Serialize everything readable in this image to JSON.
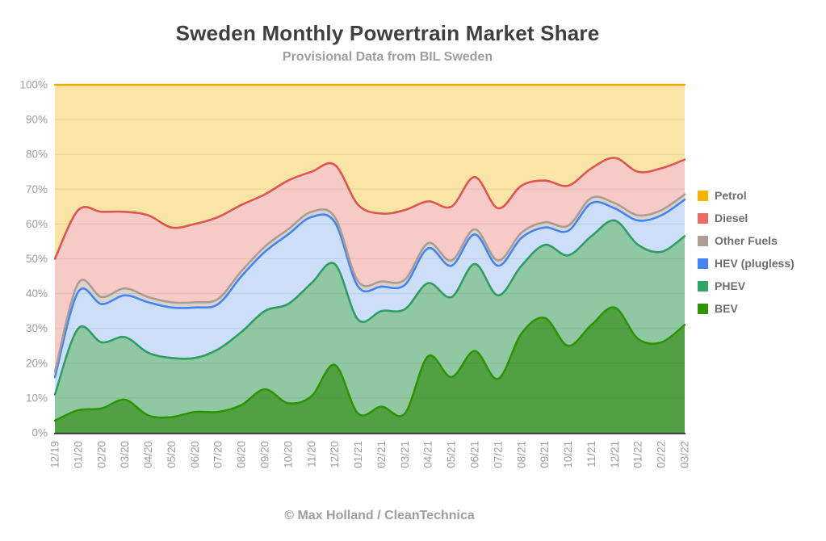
{
  "title": "Sweden Monthly Powertrain Market Share",
  "subtitle": "Provisional Data from BIL Sweden",
  "footer_credit": "© Max Holland / CleanTechnica",
  "colors": {
    "title_text": "#3F3F3F",
    "subtitle_text": "#9E9E9E",
    "axis_text": "#9E9E9E",
    "legend_text": "#6E6E6E",
    "footer_text": "#9E9E9E",
    "axis_line": "#333333",
    "gridline_overlay": "rgba(60,60,60,0.10)"
  },
  "legend": {
    "position": "right",
    "items": [
      "Petrol",
      "Diesel",
      "Other Fuels",
      "HEV (plugless)",
      "PHEV",
      "BEV"
    ]
  },
  "chart_data": {
    "type": "area",
    "stacked": true,
    "smoothing": "spline",
    "grid": true,
    "x_label_rotation": -90,
    "ylim": [
      0,
      100
    ],
    "y_tick_step": 10,
    "y_tick_suffix": "%",
    "categories": [
      "12/19",
      "01/20",
      "02/20",
      "03/20",
      "04/20",
      "05/20",
      "06/20",
      "07/20",
      "08/20",
      "09/20",
      "10/20",
      "11/20",
      "12/20",
      "01/21",
      "02/21",
      "03/21",
      "04/21",
      "05/21",
      "06/21",
      "07/21",
      "08/21",
      "09/21",
      "10/21",
      "11/21",
      "12/21",
      "01/22",
      "02/22",
      "03/22"
    ],
    "series": [
      {
        "name": "BEV",
        "line": "#2E9400",
        "fill": "#51A144",
        "swatch": "#2E9400",
        "values": [
          3.5,
          6.5,
          7,
          9.5,
          5,
          4.5,
          6,
          6,
          8,
          12.5,
          8.5,
          10.5,
          19.5,
          5.5,
          7.5,
          5.5,
          22,
          16,
          23.5,
          15.5,
          28.5,
          33,
          25,
          31,
          36,
          27,
          26,
          31
        ]
      },
      {
        "name": "PHEV",
        "line": "#2F9E64",
        "fill": "#8FC8A3",
        "swatch": "#34A367",
        "values": [
          7.5,
          23.5,
          19,
          18,
          18,
          17,
          15.5,
          18,
          21,
          22.5,
          28.5,
          32.5,
          29,
          27,
          27.5,
          30,
          21,
          23,
          25,
          24,
          19.5,
          21,
          26,
          25.5,
          25,
          27,
          26,
          25.5
        ]
      },
      {
        "name": "HEV (plugless)",
        "line": "#4285F4",
        "fill": "#CDDFF8",
        "swatch": "#4285F4",
        "values": [
          5,
          10.5,
          11,
          12,
          14.5,
          14.5,
          14.5,
          13,
          16,
          17,
          20,
          19,
          12,
          9.5,
          7,
          7,
          10,
          9,
          8.5,
          8.5,
          8,
          5,
          7,
          9.5,
          3.5,
          7,
          10.5,
          10.5
        ]
      },
      {
        "name": "Other Fuels",
        "line": "#AB9C94",
        "fill": "#DCD3CD",
        "swatch": "#AB9C94",
        "values": [
          1.5,
          2.5,
          2,
          2,
          1.5,
          1.5,
          1.5,
          1.5,
          1.5,
          1.5,
          1.5,
          1.5,
          1.5,
          1.5,
          1.5,
          1.5,
          1.5,
          1.5,
          1.5,
          1.5,
          1.5,
          1.5,
          1.5,
          1.5,
          1.5,
          1.5,
          1.5,
          1.5
        ]
      },
      {
        "name": "Diesel",
        "line": "#E0564E",
        "fill": "#F6CBC7",
        "swatch": "#E96B63",
        "values": [
          32.5,
          21,
          24.5,
          22,
          23.5,
          21.5,
          22.5,
          23.5,
          19,
          15,
          14,
          11.5,
          15,
          22,
          19.5,
          20,
          12,
          15.5,
          15,
          15,
          13.5,
          12,
          11.5,
          8.5,
          13,
          12.5,
          12,
          10
        ]
      },
      {
        "name": "Petrol",
        "line": "#F4B400",
        "fill": "#FAE5A7",
        "swatch": "#F4B400",
        "values": [
          50,
          36,
          36.5,
          36.5,
          37.5,
          41,
          40,
          38,
          34.5,
          31.5,
          27.5,
          25,
          23,
          34.5,
          37,
          36,
          33.5,
          35,
          26.5,
          35.5,
          29,
          27.5,
          29,
          24,
          21,
          25,
          24,
          21.5
        ]
      }
    ]
  }
}
